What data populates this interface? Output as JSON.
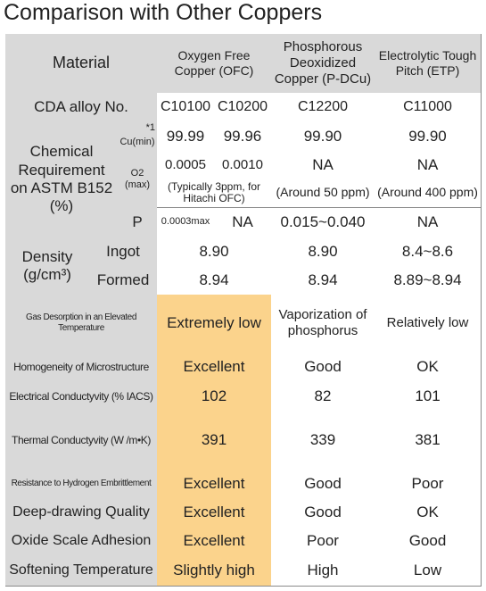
{
  "title": "Comparison with Other Coppers",
  "table": {
    "header": [
      "Material",
      "Oxygen Free Copper (OFC)",
      "Phosphorous Deoxidized Copper (P-DCu)",
      "Electrolytic Tough Pitch (ETP)"
    ],
    "cda": {
      "label": "CDA alloy No.",
      "values": [
        "C10100",
        "C10200",
        "C12200",
        "C11000"
      ]
    },
    "chemical": {
      "label": "Chemical Requirement on ASTM B152 (%)",
      "note": "*1",
      "cu": {
        "label": "Cu(min)",
        "values": [
          "99.99",
          "99.96",
          "99.90",
          "99.90"
        ]
      },
      "o2": {
        "label": "O2 (max)",
        "values": [
          "0.0005",
          "0.0010",
          "NA",
          "NA"
        ]
      },
      "o2_typical": [
        "(Typically 3ppm, for Hitachi OFC)",
        "(Around 50 ppm)",
        "(Around 400 ppm)"
      ],
      "p": {
        "label": "P",
        "values": [
          "0.0003max",
          "NA",
          "0.015~0.040",
          "NA"
        ]
      }
    },
    "density": {
      "label": "Density (g/cm³)",
      "rows": [
        {
          "label": "Ingot",
          "values": [
            "8.90",
            "8.90",
            "8.4~8.6"
          ]
        },
        {
          "label": "Formed",
          "values": [
            "8.94",
            "8.94",
            "8.89~8.94"
          ]
        }
      ]
    },
    "properties": [
      {
        "label": "Gas Desorption in an Elevated Temperature",
        "values": [
          "Extremely low",
          "Vaporization of phosphorus",
          "Relatively low"
        ]
      },
      {
        "label": "Homogeneity of Microstructure",
        "values": [
          "Excellent",
          "Good",
          "OK"
        ]
      },
      {
        "label": "Electrical Conductyvity (% IACS)",
        "values": [
          "102",
          "82",
          "101"
        ]
      },
      {
        "label": "Thermal Conductyvity (W /m•K)",
        "values": [
          "391",
          "339",
          "381"
        ]
      },
      {
        "label": "Resistance to Hydrogen Embrittlement",
        "values": [
          "Excellent",
          "Good",
          "Poor"
        ]
      },
      {
        "label": "Deep-drawing Quality",
        "values": [
          "Excellent",
          "Good",
          "OK"
        ]
      },
      {
        "label": "Oxide Scale Adhesion",
        "values": [
          "Excellent",
          "Poor",
          "Good"
        ]
      },
      {
        "label": "Softening Temperature",
        "values": [
          "Slightly high",
          "High",
          "Low"
        ]
      }
    ]
  }
}
